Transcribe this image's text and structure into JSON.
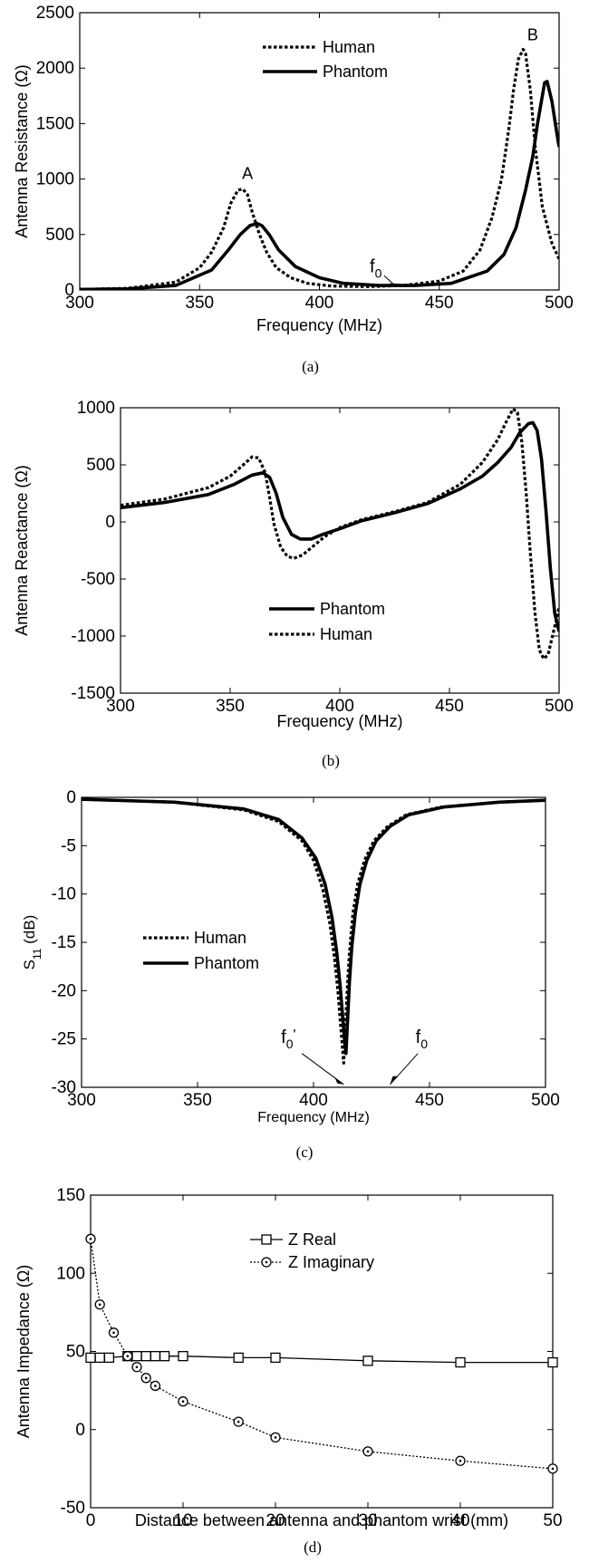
{
  "chart_data": [
    {
      "type": "line",
      "caption": "(a)",
      "xlabel": "Frequency (MHz)",
      "ylabel": "Antenna Resistance (Ω)",
      "xlim": [
        300,
        500
      ],
      "ylim": [
        0,
        2500
      ],
      "xticks": [
        "300",
        "350",
        "400",
        "450",
        "500"
      ],
      "yticks": [
        "0",
        "500",
        "1000",
        "1500",
        "2000",
        "2500"
      ],
      "legend_position": "top-center",
      "grid": false,
      "annotations": [
        "A",
        "B",
        "f",
        "0"
      ],
      "series": [
        {
          "name": "Human",
          "style": "dotted",
          "x": [
            300,
            320,
            340,
            350,
            355,
            360,
            363,
            366,
            368,
            370,
            372,
            375,
            378,
            382,
            388,
            395,
            405,
            420,
            435,
            450,
            460,
            467,
            472,
            476,
            479,
            481,
            483,
            485,
            486,
            488,
            490,
            493,
            497,
            500
          ],
          "y": [
            5,
            15,
            70,
            200,
            340,
            560,
            780,
            900,
            910,
            860,
            700,
            500,
            340,
            200,
            110,
            60,
            35,
            30,
            40,
            80,
            170,
            360,
            650,
            1000,
            1450,
            1800,
            2080,
            2170,
            2130,
            1800,
            1300,
            750,
            420,
            280
          ]
        },
        {
          "name": "Phantom",
          "style": "solid",
          "x": [
            300,
            320,
            340,
            355,
            362,
            367,
            371,
            374,
            376,
            379,
            383,
            390,
            400,
            410,
            425,
            440,
            455,
            470,
            477,
            482,
            486,
            489,
            491,
            493,
            494,
            495,
            497,
            499,
            500
          ],
          "y": [
            5,
            10,
            40,
            180,
            360,
            500,
            580,
            600,
            580,
            500,
            360,
            210,
            110,
            60,
            40,
            40,
            60,
            170,
            320,
            560,
            900,
            1200,
            1500,
            1750,
            1870,
            1880,
            1700,
            1420,
            1290
          ]
        }
      ]
    },
    {
      "type": "line",
      "caption": "(b)",
      "xlabel": "Frequency (MHz)",
      "ylabel": "Antenna Reactance (Ω)",
      "xlim": [
        300,
        500
      ],
      "ylim": [
        -1500,
        1000
      ],
      "xticks": [
        "300",
        "350",
        "400",
        "450",
        "500"
      ],
      "yticks": [
        "-1500",
        "-1000",
        "-500",
        "0",
        "500",
        "1000"
      ],
      "legend_position": "lower-left",
      "grid": false,
      "series": [
        {
          "name": "Phantom",
          "style": "solid",
          "x": [
            300,
            320,
            340,
            352,
            360,
            365,
            368,
            371,
            374,
            378,
            382,
            387,
            392,
            400,
            410,
            425,
            440,
            455,
            465,
            472,
            478,
            482,
            486,
            488,
            490,
            492,
            494,
            496,
            498,
            500
          ],
          "y": [
            125,
            170,
            240,
            330,
            410,
            430,
            390,
            250,
            40,
            -110,
            -150,
            -150,
            -110,
            -60,
            10,
            80,
            160,
            290,
            400,
            520,
            650,
            780,
            860,
            870,
            800,
            550,
            100,
            -400,
            -800,
            -960
          ]
        },
        {
          "name": "Human",
          "style": "dotted",
          "x": [
            300,
            320,
            340,
            350,
            356,
            360,
            363,
            366,
            368,
            370,
            373,
            376,
            379,
            383,
            388,
            393,
            400,
            410,
            425,
            440,
            455,
            465,
            472,
            476,
            479,
            481,
            483,
            485,
            487,
            489,
            491,
            493,
            495,
            497,
            500
          ],
          "y": [
            145,
            200,
            300,
            400,
            500,
            570,
            560,
            430,
            210,
            -20,
            -220,
            -300,
            -320,
            -290,
            -210,
            -130,
            -50,
            20,
            90,
            170,
            330,
            520,
            720,
            880,
            990,
            960,
            700,
            250,
            -300,
            -800,
            -1120,
            -1200,
            -1160,
            -1000,
            -750
          ]
        }
      ]
    },
    {
      "type": "line",
      "caption": "(c)",
      "xlabel": "Frequency (MHz)",
      "ylabel": "S11 (dB)",
      "xlim": [
        300,
        500
      ],
      "ylim": [
        -30,
        0
      ],
      "xticks": [
        "300",
        "350",
        "400",
        "450",
        "500"
      ],
      "yticks": [
        "-30",
        "-25",
        "-20",
        "-15",
        "-10",
        "-5",
        "0"
      ],
      "legend_position": "left",
      "grid": false,
      "annotations": [
        "f",
        "0",
        "'",
        "f",
        "0"
      ],
      "series": [
        {
          "name": "Human",
          "style": "dotted",
          "x": [
            300,
            340,
            370,
            385,
            395,
            400,
            404,
            407,
            409,
            410.5,
            411.5,
            412.5,
            413,
            413.5,
            414.5,
            415.5,
            417,
            419,
            422,
            426,
            432,
            440,
            455,
            480,
            500
          ],
          "y": [
            -0.2,
            -0.5,
            -1.3,
            -2.5,
            -4.5,
            -6.5,
            -9.5,
            -13,
            -16.5,
            -20,
            -23,
            -26,
            -27.5,
            -25,
            -20,
            -16,
            -12,
            -9,
            -6.5,
            -4.5,
            -3,
            -1.8,
            -1,
            -0.5,
            -0.3
          ]
        },
        {
          "name": "Phantom",
          "style": "solid",
          "x": [
            300,
            340,
            370,
            385,
            395,
            401,
            405,
            408,
            410,
            411.5,
            412.5,
            413.5,
            414,
            414.5,
            415.5,
            416.5,
            418,
            420,
            423,
            427,
            433,
            441,
            456,
            480,
            500
          ],
          "y": [
            -0.2,
            -0.5,
            -1.2,
            -2.3,
            -4.2,
            -6.3,
            -9,
            -12.5,
            -16,
            -19.5,
            -22.5,
            -25.5,
            -26.5,
            -24,
            -19,
            -15.5,
            -12,
            -9,
            -6.5,
            -4.5,
            -3,
            -1.8,
            -1,
            -0.5,
            -0.3
          ]
        }
      ]
    },
    {
      "type": "line",
      "caption": "(d)",
      "xlabel": "Distance between antenna and phantom wrist (mm)",
      "ylabel": "Antenna Impedance (Ω)",
      "xlim": [
        0,
        50
      ],
      "ylim": [
        -50,
        150
      ],
      "xticks": [
        "0",
        "10",
        "20",
        "30",
        "40",
        "50"
      ],
      "yticks": [
        "-50",
        "0",
        "50",
        "100",
        "150"
      ],
      "legend_position": "top-right",
      "grid": false,
      "series": [
        {
          "name": "Z Real",
          "style": "solid",
          "marker": "square",
          "x": [
            0,
            1,
            2,
            4,
            5,
            6,
            7,
            8,
            10,
            16,
            20,
            30,
            40,
            50
          ],
          "y": [
            46,
            46,
            46,
            47,
            47,
            47,
            47,
            47,
            47,
            46,
            46,
            44,
            43,
            43
          ]
        },
        {
          "name": "Z Imaginary",
          "style": "dotted",
          "marker": "circle",
          "x": [
            0,
            1,
            2.5,
            4,
            5,
            6,
            7,
            10,
            16,
            20,
            30,
            40,
            50
          ],
          "y": [
            122,
            80,
            62,
            47,
            40,
            33,
            28,
            18,
            5,
            -5,
            -14,
            -20,
            -25
          ]
        }
      ]
    }
  ]
}
